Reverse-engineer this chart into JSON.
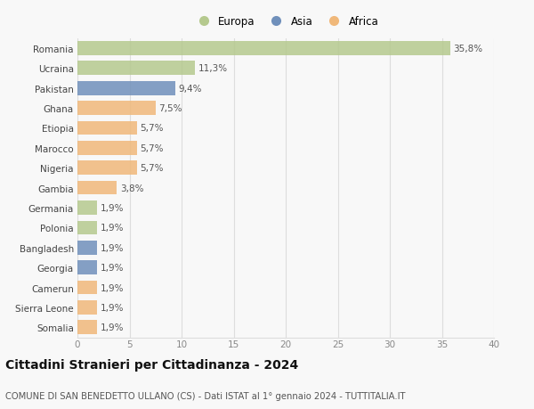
{
  "countries": [
    "Romania",
    "Ucraina",
    "Pakistan",
    "Ghana",
    "Etiopia",
    "Marocco",
    "Nigeria",
    "Gambia",
    "Germania",
    "Polonia",
    "Bangladesh",
    "Georgia",
    "Camerun",
    "Sierra Leone",
    "Somalia"
  ],
  "values": [
    35.8,
    11.3,
    9.4,
    7.5,
    5.7,
    5.7,
    5.7,
    3.8,
    1.9,
    1.9,
    1.9,
    1.9,
    1.9,
    1.9,
    1.9
  ],
  "labels": [
    "35,8%",
    "11,3%",
    "9,4%",
    "7,5%",
    "5,7%",
    "5,7%",
    "5,7%",
    "3,8%",
    "1,9%",
    "1,9%",
    "1,9%",
    "1,9%",
    "1,9%",
    "1,9%",
    "1,9%"
  ],
  "continents": [
    "Europa",
    "Europa",
    "Asia",
    "Africa",
    "Africa",
    "Africa",
    "Africa",
    "Africa",
    "Europa",
    "Europa",
    "Asia",
    "Asia",
    "Africa",
    "Africa",
    "Africa"
  ],
  "colors": {
    "Europa": "#b5c98e",
    "Asia": "#7090bb",
    "Africa": "#f0b87a"
  },
  "xlim": [
    0,
    40
  ],
  "xticks": [
    0,
    5,
    10,
    15,
    20,
    25,
    30,
    35,
    40
  ],
  "title": "Cittadini Stranieri per Cittadinanza - 2024",
  "subtitle": "COMUNE DI SAN BENEDETTO ULLANO (CS) - Dati ISTAT al 1° gennaio 2024 - TUTTITALIA.IT",
  "bg_color": "#f8f8f8",
  "grid_color": "#dddddd",
  "bar_height": 0.7,
  "label_fontsize": 7.5,
  "ytick_fontsize": 7.5,
  "xtick_fontsize": 7.5,
  "title_fontsize": 10,
  "subtitle_fontsize": 7.2,
  "legend_fontsize": 8.5
}
